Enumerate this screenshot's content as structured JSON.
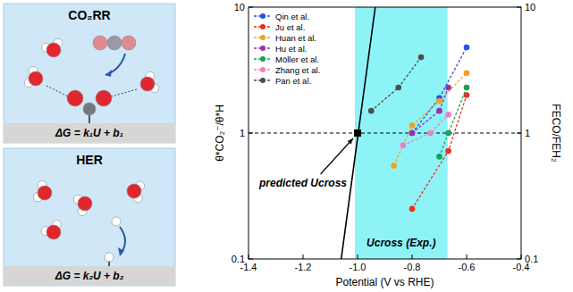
{
  "chart_data": {
    "type": "line",
    "x_label": "Potential (V vs RHE)",
    "y_label": "θ*CO₂⁻/θ*H",
    "y2_label": "FECO/FEH₂",
    "xlim": [
      -1.4,
      -0.4
    ],
    "xticks": [
      -1.4,
      -1.2,
      {
        "value": -1.0,
        "label": "-1.0"
      },
      -0.8,
      -0.6,
      -0.4
    ],
    "ylim": [
      0.1,
      10
    ],
    "yticks": [
      0.1,
      1,
      10
    ],
    "y2lim": [
      0.1,
      10
    ],
    "y2ticks": [
      0.1,
      1,
      10
    ],
    "log": "y",
    "grid": false,
    "legend": "upper left",
    "marker": "circle",
    "line_style": "dashed",
    "series": [
      {
        "name": "Qin et al.",
        "color": "#2b4de0",
        "axis": "y2",
        "x": [
          -0.8,
          -0.7,
          -0.6
        ],
        "values": [
          1.0,
          1.9,
          4.8
        ]
      },
      {
        "name": "Ju et al.",
        "color": "#e8311a",
        "axis": "y2",
        "x": [
          -0.8,
          -0.667,
          -0.6
        ],
        "values": [
          0.25,
          0.72,
          2.0
        ]
      },
      {
        "name": "Huan et al.",
        "color": "#f5a01e",
        "axis": "y2",
        "x": [
          -0.867,
          -0.8,
          -0.7,
          -0.6
        ],
        "values": [
          0.55,
          1.15,
          1.8,
          3.0
        ]
      },
      {
        "name": "Hu et al.",
        "color": "#9b2fae",
        "axis": "y2",
        "x": [
          -0.8,
          -0.7,
          -0.667
        ],
        "values": [
          1.0,
          1.5,
          2.3
        ]
      },
      {
        "name": "Möller et al.",
        "color": "#1a9e5a",
        "axis": "y2",
        "x": [
          -0.7,
          -0.667,
          -0.6
        ],
        "values": [
          0.65,
          1.0,
          2.3
        ]
      },
      {
        "name": "Zhang et al.",
        "color": "#f07fbf",
        "axis": "y2",
        "x": [
          -0.833,
          -0.733,
          -0.667
        ],
        "values": [
          0.8,
          1.0,
          1.4
        ]
      },
      {
        "name": "Pan et al.",
        "color": "#4d4d4d",
        "axis": "y2",
        "x": [
          -0.95,
          -0.85,
          -0.767
        ],
        "values": [
          1.5,
          2.3,
          4.0
        ]
      }
    ],
    "model_line": {
      "color": "#000000",
      "x": [
        -1.06,
        -0.935
      ],
      "values": [
        0.1,
        10
      ]
    },
    "predicted_point": {
      "x": -1.0,
      "y": 1
    },
    "reference_line": 1,
    "shaded_range": [
      -1.01,
      -0.67
    ],
    "annotations": {
      "predicted": "predicted Ucross",
      "band": "Ucross (Exp.)"
    }
  },
  "diagram": {
    "panels": [
      {
        "title": "CO₂RR",
        "equation": "ΔG = k₁U + b₁"
      },
      {
        "title": "HER",
        "equation": "ΔG = k₂U + b₂"
      }
    ]
  }
}
